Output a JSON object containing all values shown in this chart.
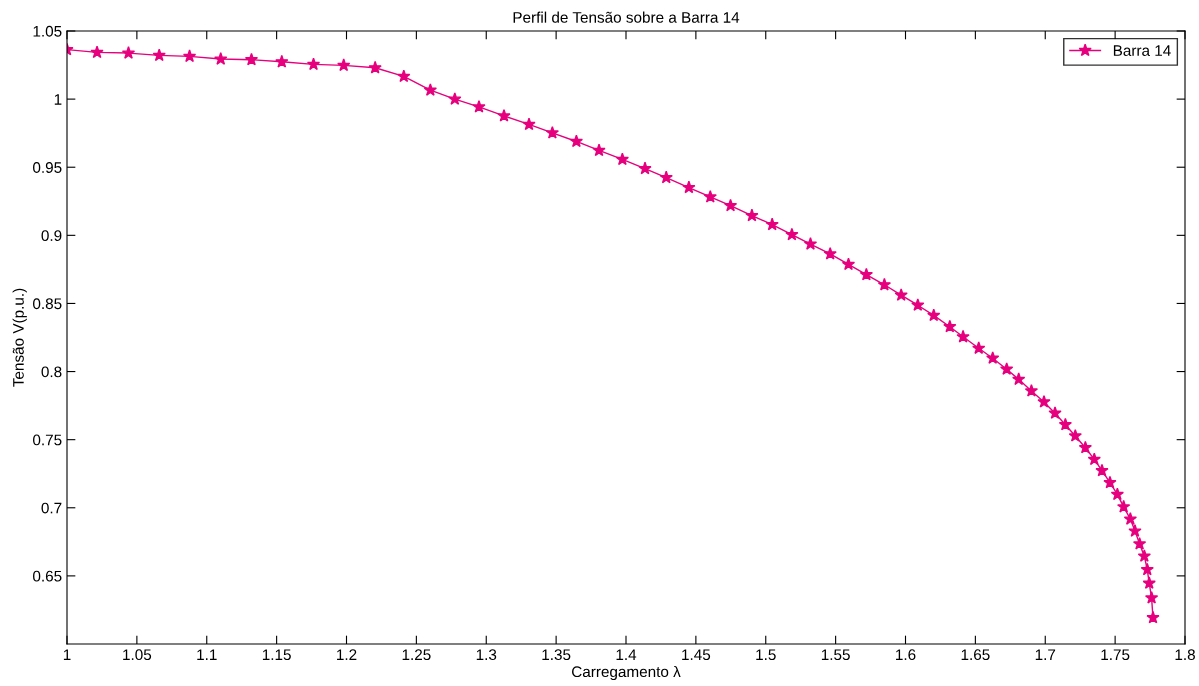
{
  "chart_data": {
    "type": "line",
    "title": "Perfil de Tensão sobre a Barra 14",
    "xlabel": "Carregamento λ",
    "ylabel": "Tensão V(p.u.)",
    "xlim": [
      1,
      1.8
    ],
    "xticks": [
      1,
      1.05,
      1.1,
      1.15,
      1.2,
      1.25,
      1.3,
      1.35,
      1.4,
      1.45,
      1.5,
      1.55,
      1.6,
      1.65,
      1.7,
      1.75,
      1.8
    ],
    "ylim": [
      0.6,
      1.05
    ],
    "yticks": [
      0.65,
      0.7,
      0.75,
      0.8,
      0.85,
      0.9,
      0.95,
      1,
      1.05
    ],
    "grid": false,
    "legend": "top right",
    "marker": "star",
    "line_style": "solid",
    "series": [
      {
        "name": "Barra 14",
        "color": "#e6007e",
        "x": [
          1.0,
          1.0215,
          1.044,
          1.066,
          1.0877,
          1.11,
          1.132,
          1.1537,
          1.1764,
          1.198,
          1.2205,
          1.241,
          1.26,
          1.2775,
          1.2948,
          1.3127,
          1.3306,
          1.3473,
          1.3645,
          1.3807,
          1.3974,
          1.4136,
          1.4288,
          1.445,
          1.4603,
          1.4748,
          1.4901,
          1.5046,
          1.5187,
          1.532,
          1.5461,
          1.5592,
          1.572,
          1.5849,
          1.5969,
          1.6088,
          1.6202,
          1.6317,
          1.6412,
          1.6524,
          1.6624,
          1.6724,
          1.681,
          1.6901,
          1.6991,
          1.707,
          1.7144,
          1.7215,
          1.7287,
          1.7351,
          1.7406,
          1.7463,
          1.7516,
          1.7561,
          1.7609,
          1.7642,
          1.7675,
          1.7709,
          1.773,
          1.7744,
          1.7761,
          1.7771
        ],
        "values": [
          1.0363,
          1.0343,
          1.0338,
          1.0321,
          1.0314,
          1.0294,
          1.0289,
          1.0274,
          1.0255,
          1.0248,
          1.023,
          1.0167,
          1.0066,
          1.0,
          0.9943,
          0.9877,
          0.9814,
          0.9752,
          0.9689,
          0.9623,
          0.9557,
          0.949,
          0.9424,
          0.9351,
          0.9282,
          0.9218,
          0.9145,
          0.9079,
          0.9005,
          0.8936,
          0.8864,
          0.8787,
          0.8711,
          0.8637,
          0.8561,
          0.8487,
          0.8412,
          0.8329,
          0.8255,
          0.8171,
          0.8098,
          0.8017,
          0.7943,
          0.7858,
          0.7777,
          0.7694,
          0.761,
          0.7527,
          0.7441,
          0.7355,
          0.7272,
          0.7184,
          0.7098,
          0.7007,
          0.6917,
          0.6829,
          0.6735,
          0.6645,
          0.6546,
          0.6446,
          0.6338,
          0.6193
        ]
      }
    ]
  }
}
